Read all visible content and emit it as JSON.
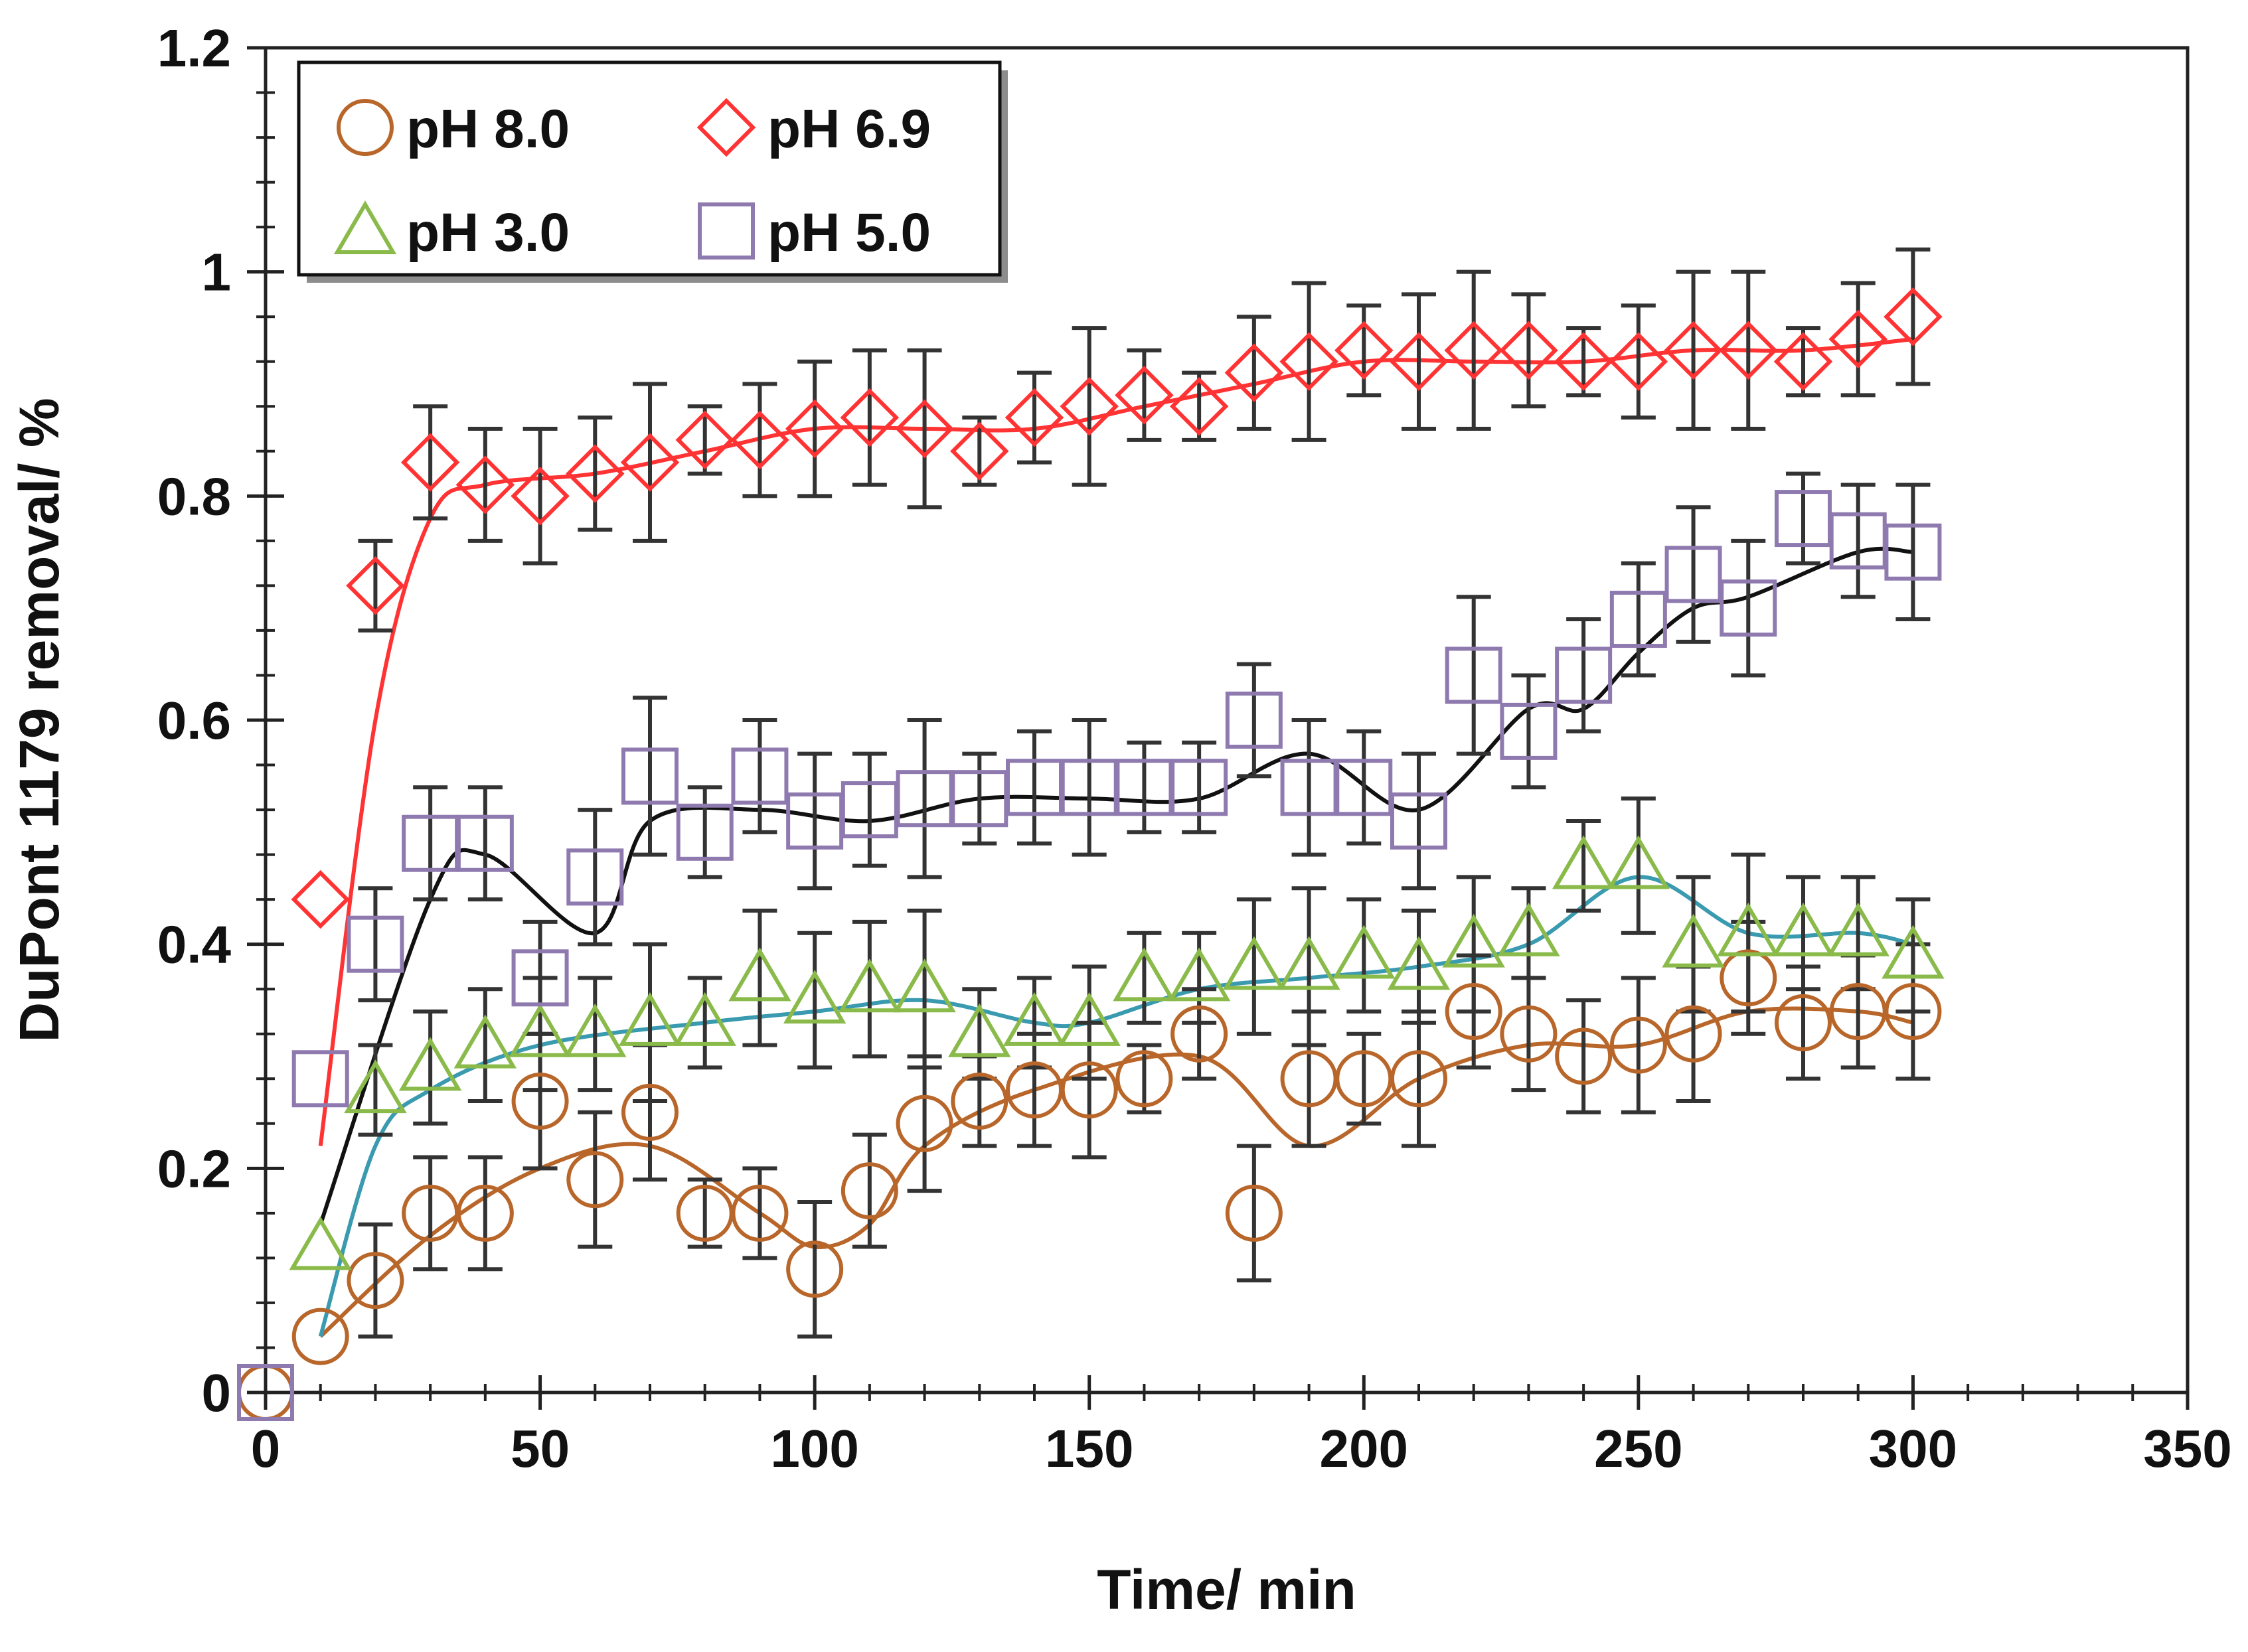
{
  "chart_data": {
    "type": "scatter",
    "title": "",
    "xlabel": "Time/ min",
    "ylabel": "DuPont 1179 removal/ %",
    "xlim": [
      0,
      350
    ],
    "ylim": [
      0,
      1.2
    ],
    "x_ticks": [
      0,
      50,
      100,
      150,
      200,
      250,
      300,
      350
    ],
    "y_ticks": [
      0,
      0.2,
      0.4,
      0.6,
      0.8,
      1,
      1.2
    ],
    "x_tick_labels": [
      "0",
      "50",
      "100",
      "150",
      "200",
      "250",
      "300",
      "350"
    ],
    "y_tick_labels": [
      "0",
      "0.2",
      "0.4",
      "0.6",
      "0.8",
      "1",
      "1.2"
    ],
    "grid": false,
    "legend_position": "top-left",
    "series": [
      {
        "name": "pH 8.0",
        "marker": "circle",
        "color": "#b8662a",
        "line_color": "#b8662a",
        "x": [
          0,
          10,
          20,
          30,
          40,
          50,
          60,
          70,
          80,
          90,
          100,
          110,
          120,
          130,
          140,
          150,
          160,
          170,
          180,
          190,
          200,
          210,
          220,
          230,
          240,
          250,
          260,
          270,
          280,
          290,
          300
        ],
        "y": [
          0,
          0.05,
          0.1,
          0.16,
          0.16,
          0.26,
          0.19,
          0.25,
          0.16,
          0.16,
          0.11,
          0.18,
          0.24,
          0.26,
          0.27,
          0.27,
          0.28,
          0.32,
          0.16,
          0.28,
          0.28,
          0.28,
          0.34,
          0.32,
          0.3,
          0.31,
          0.32,
          0.37,
          0.33,
          0.34,
          0.34
        ],
        "error": [
          0,
          0,
          0.05,
          0.05,
          0.05,
          0.06,
          0.06,
          0.06,
          0.03,
          0.04,
          0.06,
          0.05,
          0.06,
          0.04,
          0.05,
          0.06,
          0.03,
          0.04,
          0.06,
          0.06,
          0.04,
          0.06,
          0.05,
          0.05,
          0.05,
          0.06,
          0.06,
          0.05,
          0.05,
          0.05,
          0.06
        ],
        "fit_x": [
          10,
          30,
          50,
          70,
          90,
          100,
          110,
          120,
          140,
          170,
          190,
          210,
          230,
          250,
          270,
          290,
          300
        ],
        "fit_y": [
          0.05,
          0.14,
          0.2,
          0.22,
          0.16,
          0.13,
          0.15,
          0.22,
          0.27,
          0.3,
          0.22,
          0.28,
          0.31,
          0.31,
          0.34,
          0.34,
          0.33
        ]
      },
      {
        "name": "pH 6.9",
        "marker": "diamond",
        "color": "#ff3333",
        "line_color": "#ff3333",
        "x": [
          10,
          20,
          30,
          40,
          50,
          60,
          70,
          80,
          90,
          100,
          110,
          120,
          130,
          140,
          150,
          160,
          170,
          180,
          190,
          200,
          210,
          220,
          230,
          240,
          250,
          260,
          270,
          280,
          290,
          300
        ],
        "y": [
          0.44,
          0.72,
          0.83,
          0.81,
          0.8,
          0.82,
          0.83,
          0.85,
          0.85,
          0.86,
          0.87,
          0.86,
          0.84,
          0.87,
          0.88,
          0.89,
          0.88,
          0.91,
          0.92,
          0.93,
          0.92,
          0.93,
          0.93,
          0.92,
          0.92,
          0.93,
          0.93,
          0.92,
          0.94,
          0.96
        ],
        "error": [
          0,
          0.04,
          0.05,
          0.05,
          0.06,
          0.05,
          0.07,
          0.03,
          0.05,
          0.06,
          0.06,
          0.07,
          0.03,
          0.04,
          0.07,
          0.04,
          0.03,
          0.05,
          0.07,
          0.04,
          0.06,
          0.07,
          0.05,
          0.03,
          0.05,
          0.07,
          0.07,
          0.03,
          0.05,
          0.06
        ],
        "fit_x": [
          10,
          20,
          30,
          40,
          60,
          80,
          100,
          120,
          140,
          160,
          180,
          200,
          220,
          240,
          260,
          280,
          300
        ],
        "fit_y": [
          0.22,
          0.6,
          0.78,
          0.81,
          0.82,
          0.84,
          0.86,
          0.86,
          0.86,
          0.88,
          0.9,
          0.92,
          0.92,
          0.92,
          0.93,
          0.93,
          0.94
        ]
      },
      {
        "name": "pH 3.0",
        "marker": "triangle",
        "color": "#8aba4a",
        "line_color": "#3a9ab0",
        "x": [
          10,
          20,
          30,
          40,
          50,
          60,
          70,
          80,
          90,
          100,
          110,
          120,
          130,
          140,
          150,
          160,
          170,
          180,
          190,
          200,
          210,
          220,
          230,
          240,
          250,
          260,
          270,
          280,
          290,
          300
        ],
        "y": [
          0.13,
          0.27,
          0.29,
          0.31,
          0.32,
          0.32,
          0.33,
          0.33,
          0.37,
          0.35,
          0.36,
          0.36,
          0.32,
          0.33,
          0.33,
          0.37,
          0.37,
          0.38,
          0.38,
          0.39,
          0.38,
          0.4,
          0.41,
          0.47,
          0.47,
          0.4,
          0.41,
          0.41,
          0.41,
          0.39
        ],
        "error": [
          0,
          0.04,
          0.05,
          0.05,
          0.05,
          0.05,
          0.07,
          0.04,
          0.06,
          0.06,
          0.06,
          0.07,
          0.04,
          0.04,
          0.05,
          0.04,
          0.04,
          0.06,
          0.07,
          0.05,
          0.05,
          0.06,
          0.04,
          0.04,
          0.06,
          0.06,
          0.07,
          0.05,
          0.05,
          0.05
        ],
        "fit_x": [
          10,
          20,
          30,
          50,
          80,
          100,
          120,
          140,
          150,
          170,
          190,
          210,
          230,
          250,
          270,
          290,
          300
        ],
        "fit_y": [
          0.05,
          0.22,
          0.27,
          0.31,
          0.33,
          0.34,
          0.35,
          0.33,
          0.33,
          0.36,
          0.37,
          0.38,
          0.4,
          0.46,
          0.41,
          0.41,
          0.4
        ]
      },
      {
        "name": "pH 5.0",
        "marker": "square",
        "color": "#8f7ab0",
        "line_color": "#111111",
        "x": [
          0,
          10,
          20,
          30,
          40,
          50,
          60,
          70,
          80,
          90,
          100,
          110,
          120,
          130,
          140,
          150,
          160,
          170,
          180,
          190,
          200,
          210,
          220,
          230,
          240,
          250,
          260,
          270,
          280,
          290,
          300
        ],
        "y": [
          0,
          0.28,
          0.4,
          0.49,
          0.49,
          0.37,
          0.46,
          0.55,
          0.5,
          0.55,
          0.51,
          0.52,
          0.53,
          0.53,
          0.54,
          0.54,
          0.54,
          0.54,
          0.6,
          0.54,
          0.54,
          0.51,
          0.64,
          0.59,
          0.64,
          0.69,
          0.73,
          0.7,
          0.78,
          0.76,
          0.75
        ],
        "error": [
          0,
          0,
          0.05,
          0.05,
          0.05,
          0.05,
          0.06,
          0.07,
          0.04,
          0.05,
          0.06,
          0.05,
          0.07,
          0.04,
          0.05,
          0.06,
          0.04,
          0.04,
          0.05,
          0.06,
          0.05,
          0.06,
          0.07,
          0.05,
          0.05,
          0.05,
          0.06,
          0.06,
          0.04,
          0.05,
          0.06
        ],
        "fit_x": [
          10,
          30,
          40,
          60,
          70,
          90,
          110,
          130,
          150,
          170,
          190,
          210,
          230,
          240,
          250,
          260,
          270,
          290,
          300
        ],
        "fit_y": [
          0.15,
          0.44,
          0.48,
          0.41,
          0.51,
          0.52,
          0.51,
          0.53,
          0.53,
          0.53,
          0.57,
          0.52,
          0.61,
          0.61,
          0.66,
          0.7,
          0.71,
          0.75,
          0.75
        ]
      }
    ]
  },
  "legend": {
    "entries": [
      "pH 8.0",
      "pH 6.9",
      "pH 3.0",
      "pH 5.0"
    ]
  }
}
